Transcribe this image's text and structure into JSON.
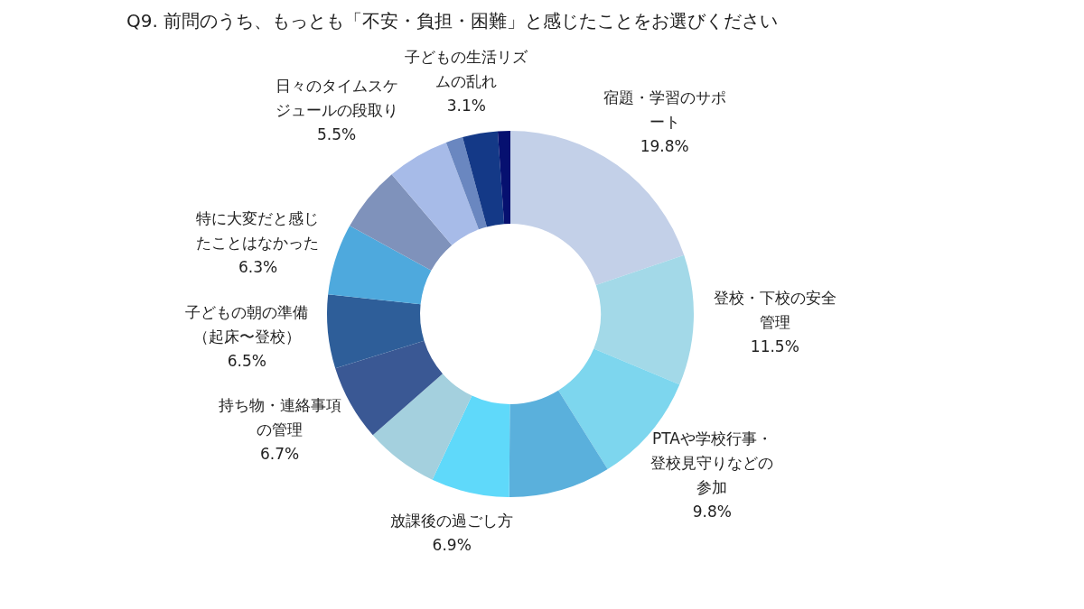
{
  "chart_data": {
    "type": "donut",
    "title": "Q9. 前問のうち、もっとも「不安・負担・困難」と感じたことをお選びください",
    "categories": [
      "宿題・学習のサポート",
      "登校・下校の安全管理",
      "PTAや学校行事・登校見守りなどの参加",
      null,
      "放課後の過ごし方",
      null,
      "持ち物・連絡事項の管理",
      "子どもの朝の準備（起床〜登校）",
      "特に大変だと感じたことはなかった",
      null,
      "日々のタイムスケジュールの段取り",
      null,
      "子どもの生活リズムの乱れ",
      null
    ],
    "values": [
      19.8,
      11.5,
      9.8,
      9.0,
      6.9,
      6.5,
      6.7,
      6.5,
      6.3,
      5.8,
      5.5,
      1.5,
      3.1,
      1.1
    ],
    "value_labels": [
      "19.8%",
      "11.5%",
      "9.8%",
      null,
      "6.9%",
      null,
      "6.7%",
      "6.5%",
      "6.3%",
      null,
      "5.5%",
      null,
      "3.1%",
      null
    ],
    "colors": [
      "#c3d0e8",
      "#a3d9e8",
      "#7dd6ee",
      "#5ab0dc",
      "#5fd9fa",
      "#a4d0de",
      "#3a5894",
      "#2e5e99",
      "#4ea9dd",
      "#7f92bb",
      "#a7bbe8",
      "#6a87c0",
      "#143987",
      "#061070"
    ]
  }
}
